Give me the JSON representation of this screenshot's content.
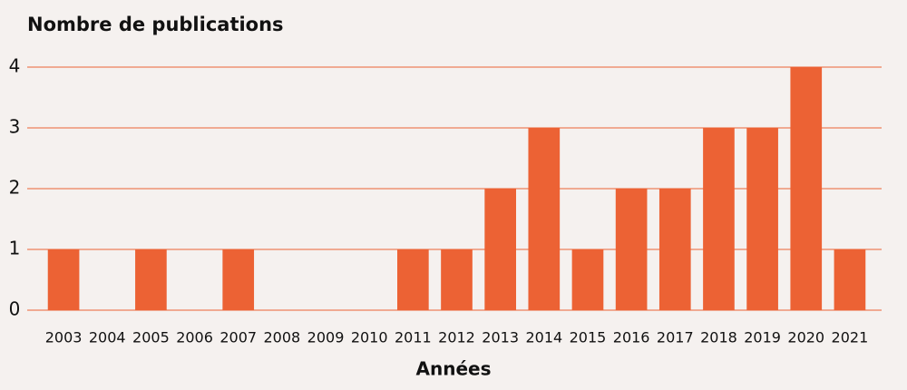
{
  "chart_data": {
    "type": "bar",
    "title": "Nombre de publications",
    "xlabel": "Années",
    "categories": [
      "2003",
      "2004",
      "2005",
      "2006",
      "2007",
      "2008",
      "2009",
      "2010",
      "2011",
      "2012",
      "2013",
      "2014",
      "2015",
      "2016",
      "2017",
      "2018",
      "2019",
      "2020",
      "2021"
    ],
    "values": [
      1,
      0,
      1,
      0,
      1,
      0,
      0,
      0,
      1,
      1,
      2,
      3,
      1,
      2,
      2,
      3,
      3,
      4,
      1
    ],
    "color": "#ec6234",
    "ylim": [
      0,
      4
    ],
    "yticks": [
      0,
      1,
      2,
      3,
      4
    ],
    "grid": true
  }
}
